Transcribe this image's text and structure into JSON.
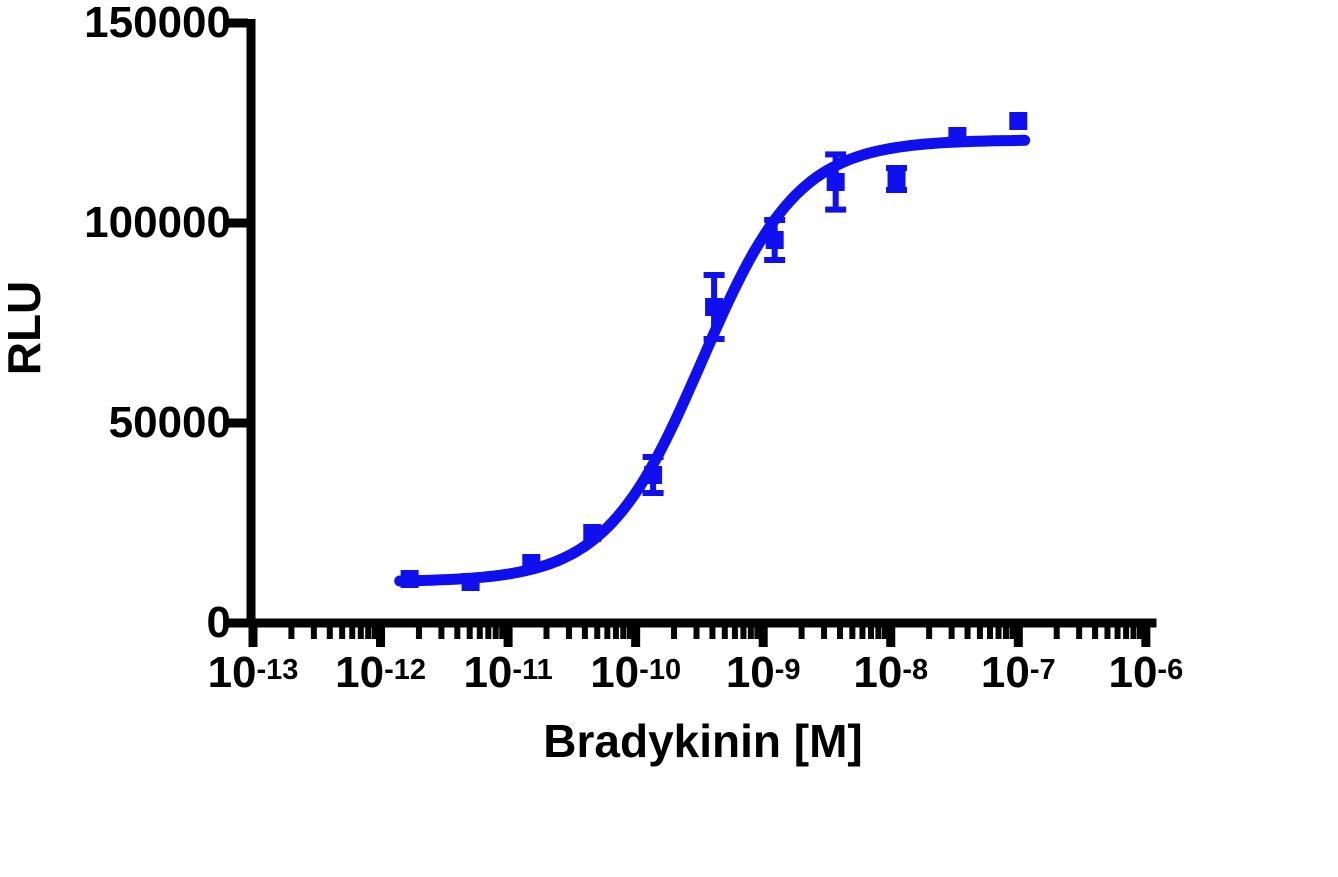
{
  "figure": {
    "background": "#ffffff",
    "axis_color": "#000000"
  },
  "chart_data": {
    "type": "scatter",
    "subtype": "dose-response-curve-4PL",
    "title": "",
    "xlabel": "Bradykinin [M]",
    "ylabel": "RLU",
    "x_scale": "log10",
    "x_tick_base": "10",
    "x_tick_exponents": [
      -13,
      -12,
      -11,
      -10,
      -9,
      -8,
      -7,
      -6
    ],
    "x_minor_multiples": [
      2,
      3,
      4,
      5,
      6,
      7,
      8,
      9
    ],
    "xlim_exponents": [
      -13,
      -6
    ],
    "y_ticks": [
      0,
      50000,
      100000,
      150000
    ],
    "ylim": [
      0,
      150000
    ],
    "grid": false,
    "legend": "none",
    "series": [
      {
        "name": "Bradykinin",
        "marker": "square",
        "color": "#0f0fef",
        "points": [
          {
            "conc_M": 1.69e-12,
            "rlu": 11000,
            "err": 0
          },
          {
            "conc_M": 5.08e-12,
            "rlu": 10250,
            "err": 0
          },
          {
            "conc_M": 1.52e-11,
            "rlu": 15000,
            "err": 0
          },
          {
            "conc_M": 4.57e-11,
            "rlu": 22500,
            "err": 0
          },
          {
            "conc_M": 1.37e-10,
            "rlu": 37000,
            "err": 4500
          },
          {
            "conc_M": 4.12e-10,
            "rlu": 79000,
            "err": 8000
          },
          {
            "conc_M": 1.23e-09,
            "rlu": 95750,
            "err": 5000
          },
          {
            "conc_M": 3.7e-09,
            "rlu": 110250,
            "err": 6900
          },
          {
            "conc_M": 1.11e-08,
            "rlu": 111000,
            "err": 2750
          },
          {
            "conc_M": 3.33e-08,
            "rlu": 121750,
            "err": 0
          },
          {
            "conc_M": 1e-07,
            "rlu": 125500,
            "err": 0
          }
        ],
        "fit": {
          "model": "4PL sigmoidal",
          "bottom_rlu": 10300,
          "top_rlu": 120800,
          "log_ec50": -9.48,
          "ec50_M": 3.3e-10,
          "hill_slope": 1.15,
          "curve_logx_range": [
            -11.85,
            -6.95
          ]
        }
      }
    ]
  }
}
